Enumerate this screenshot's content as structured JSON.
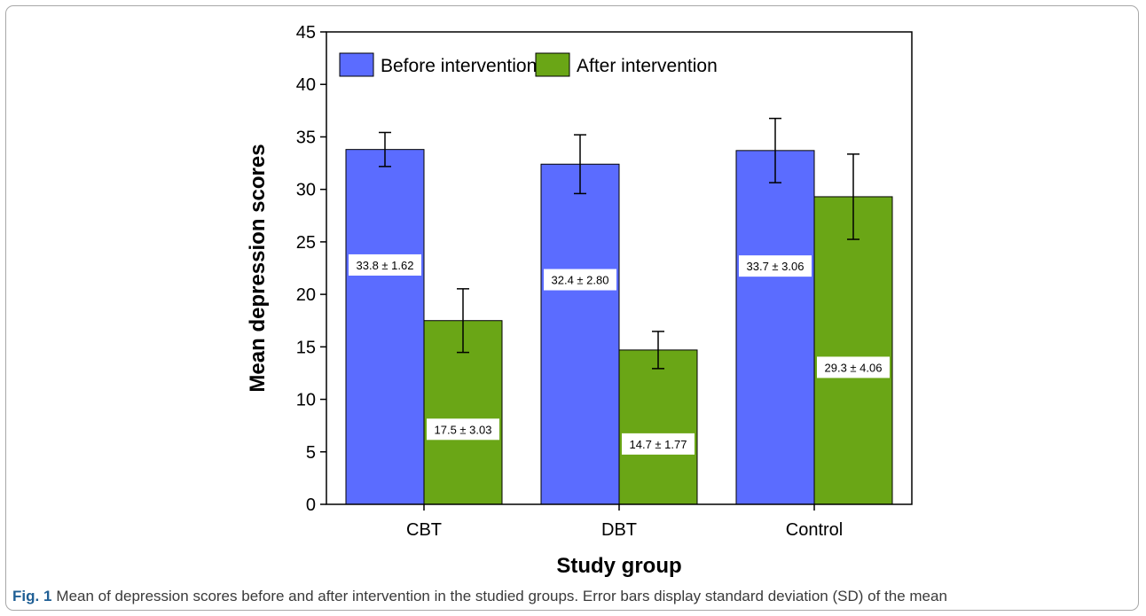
{
  "chart_data": {
    "type": "bar",
    "categories": [
      "CBT",
      "DBT",
      "Control"
    ],
    "series": [
      {
        "name": "Before intervention",
        "color": "#5b6cff",
        "values": [
          33.8,
          32.4,
          33.7
        ],
        "errors": [
          1.62,
          2.8,
          3.06
        ],
        "labels": [
          "33.8 ± 1.62",
          "32.4 ± 2.80",
          "33.7 ± 3.06"
        ]
      },
      {
        "name": "After intervention",
        "color": "#6aa616",
        "values": [
          17.5,
          14.7,
          29.3
        ],
        "errors": [
          3.03,
          1.77,
          4.06
        ],
        "labels": [
          "17.5 ± 3.03",
          "14.7 ± 1.77",
          "29.3 ± 4.06"
        ]
      }
    ],
    "xlabel": "Study group",
    "ylabel": "Mean depression scores",
    "ylim": [
      0,
      45
    ],
    "yticks": [
      0,
      5,
      10,
      15,
      20,
      25,
      30,
      35,
      40,
      45
    ],
    "legend_position": "top",
    "grid": false
  },
  "caption": {
    "label": "Fig. 1",
    "text": "Mean of depression scores before and after intervention in the studied groups. Error bars display standard deviation (SD) of the mean"
  }
}
